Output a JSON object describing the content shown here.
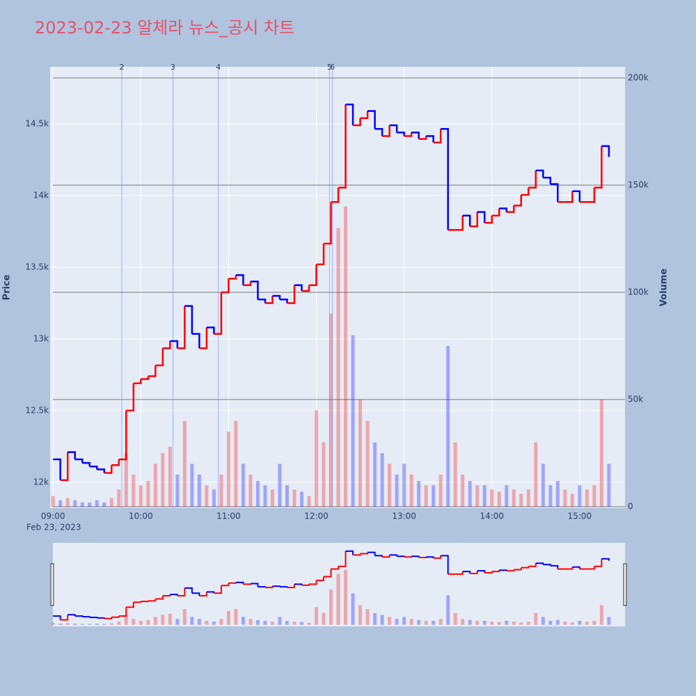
{
  "chart_data": {
    "type": "price_volume",
    "title": "2023-02-23 알체라 뉴스_공시 차트",
    "ylabel": "Price",
    "y2label": "Volume",
    "x_date_label": "Feb 23, 2023",
    "up_color": "#ff0000",
    "down_color": "#0000ff",
    "x": [
      "09:00",
      "09:05",
      "09:10",
      "09:15",
      "09:20",
      "09:25",
      "09:30",
      "09:35",
      "09:40",
      "09:45",
      "09:50",
      "09:55",
      "10:00",
      "10:05",
      "10:10",
      "10:15",
      "10:20",
      "10:25",
      "10:30",
      "10:35",
      "10:40",
      "10:45",
      "10:50",
      "10:55",
      "11:00",
      "11:05",
      "11:10",
      "11:15",
      "11:20",
      "11:25",
      "11:30",
      "11:35",
      "11:40",
      "11:45",
      "11:50",
      "11:55",
      "12:00",
      "12:05",
      "12:10",
      "12:15",
      "12:20",
      "12:25",
      "12:30",
      "12:35",
      "12:40",
      "12:45",
      "12:50",
      "12:55",
      "13:00",
      "13:05",
      "13:10",
      "13:15",
      "13:20",
      "13:25",
      "13:30",
      "13:35",
      "13:40",
      "13:45",
      "13:50",
      "13:55",
      "14:00",
      "14:05",
      "14:10",
      "14:15",
      "14:20",
      "14:25",
      "14:30",
      "14:35",
      "14:40",
      "14:45",
      "14:50",
      "14:55",
      "15:00",
      "15:05",
      "15:10",
      "15:15",
      "15:20"
    ],
    "series": [
      {
        "name": "Price",
        "values": [
          12160,
          12015,
          12210,
          12160,
          12135,
          12110,
          12090,
          12065,
          12120,
          12160,
          12500,
          12690,
          12720,
          12740,
          12815,
          12935,
          12985,
          12935,
          13230,
          13035,
          12935,
          13080,
          13035,
          13325,
          13420,
          13445,
          13375,
          13400,
          13275,
          13250,
          13300,
          13275,
          13250,
          13375,
          13335,
          13375,
          13520,
          13665,
          13955,
          14055,
          14635,
          14490,
          14540,
          14590,
          14465,
          14415,
          14490,
          14440,
          14415,
          14440,
          14395,
          14415,
          14370,
          14465,
          13760,
          13760,
          13860,
          13785,
          13885,
          13810,
          13860,
          13910,
          13885,
          13930,
          14005,
          14055,
          14175,
          14125,
          14080,
          13955,
          13955,
          14030,
          13955,
          13955,
          14055,
          14345,
          14270
        ]
      },
      {
        "name": "Volume",
        "axis": "y2",
        "values": [
          5000,
          3000,
          4000,
          3000,
          2000,
          2000,
          3000,
          2000,
          4000,
          8000,
          25000,
          15000,
          10000,
          12000,
          20000,
          25000,
          28000,
          15000,
          40000,
          20000,
          15000,
          10000,
          8000,
          15000,
          35000,
          40000,
          20000,
          15000,
          12000,
          10000,
          8000,
          20000,
          10000,
          8000,
          7000,
          5000,
          45000,
          30000,
          90000,
          130000,
          140000,
          80000,
          50000,
          40000,
          30000,
          25000,
          20000,
          15000,
          20000,
          15000,
          12000,
          10000,
          10000,
          15000,
          75000,
          30000,
          15000,
          12000,
          10000,
          10000,
          8000,
          7000,
          10000,
          8000,
          6000,
          8000,
          30000,
          20000,
          10000,
          12000,
          8000,
          6000,
          10000,
          8000,
          10000,
          50000,
          20000
        ]
      }
    ],
    "xlim": [
      "08:58",
      "15:31"
    ],
    "xticks": [
      "09:00",
      "10:00",
      "11:00",
      "12:00",
      "13:00",
      "14:00",
      "15:00"
    ],
    "ylim": [
      11820,
      14898
    ],
    "yticks": [
      {
        "value": 12000,
        "label": "12k"
      },
      {
        "value": 12500,
        "label": "12.5k"
      },
      {
        "value": 13000,
        "label": "13k"
      },
      {
        "value": 13500,
        "label": "13.5k"
      },
      {
        "value": 14000,
        "label": "14k"
      },
      {
        "value": 14500,
        "label": "14.5k"
      }
    ],
    "y2lim": [
      -650,
      205200
    ],
    "y2ticks": [
      0,
      {
        "value": 50000,
        "label": "50k"
      },
      {
        "value": 100000,
        "label": "100k"
      },
      {
        "value": 150000,
        "label": "150k"
      },
      {
        "value": 200000,
        "label": "200k"
      }
    ],
    "annotations": [
      {
        "text": "2",
        "x": "09:47"
      },
      {
        "text": "3",
        "x": "10:22"
      },
      {
        "text": "4",
        "x": "10:53"
      },
      {
        "text": "5",
        "x": "12:09"
      },
      {
        "text": "6",
        "x": "12:11"
      }
    ],
    "grid": true,
    "rangeslider": true
  }
}
